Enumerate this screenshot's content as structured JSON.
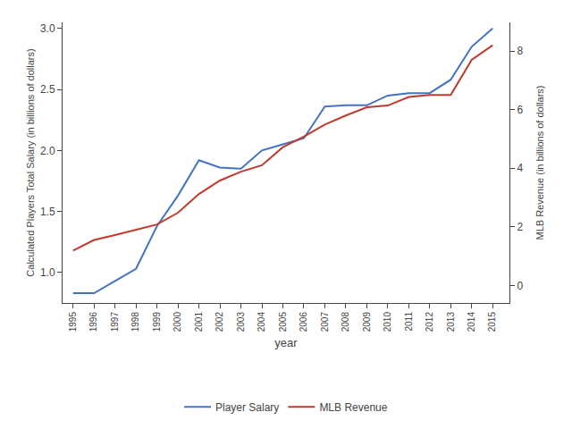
{
  "chart_data": {
    "type": "line",
    "x": [
      1995,
      1996,
      1997,
      1998,
      1999,
      2000,
      2001,
      2002,
      2003,
      2004,
      2005,
      2006,
      2007,
      2008,
      2009,
      2010,
      2011,
      2012,
      2013,
      2014,
      2015
    ],
    "xlabel": "year",
    "ylabel": "Calculated Players Total Salary (in billions of dollars)",
    "y2label": "MLB Revenue (in billions of dollars)",
    "series": [
      {
        "name": "Player Salary",
        "color": "#4472C4",
        "values": [
          0.83,
          0.83,
          0.93,
          1.03,
          1.38,
          1.63,
          1.92,
          1.86,
          1.85,
          2.0,
          2.05,
          2.1,
          2.36,
          2.37,
          2.37,
          2.45,
          2.47,
          2.47,
          2.58,
          2.85,
          3.0
        ]
      },
      {
        "name": "MLB Revenue",
        "color": "#C0392B",
        "axis": "y2",
        "values": [
          1.19,
          1.55,
          1.72,
          1.91,
          2.08,
          2.48,
          3.12,
          3.58,
          3.88,
          4.1,
          4.72,
          5.08,
          5.49,
          5.8,
          6.08,
          6.14,
          6.43,
          6.5,
          6.5,
          7.7,
          8.2
        ]
      }
    ],
    "xlim": [
      1994.5,
      2015.8
    ],
    "xticks": [
      1995,
      1996,
      1997,
      1998,
      1999,
      2000,
      2001,
      2002,
      2003,
      2004,
      2005,
      2006,
      2007,
      2008,
      2009,
      2010,
      2011,
      2012,
      2013,
      2014,
      2015
    ],
    "ylim": [
      0.75,
      3.05
    ],
    "yticks": [
      {
        "value": 1.0,
        "label": "1.0"
      },
      1.5,
      {
        "value": 2.0,
        "label": "2.0"
      },
      2.5,
      {
        "value": 3.0,
        "label": "3.0"
      }
    ],
    "y2lim": [
      -0.6,
      8.98
    ],
    "y2ticks": [
      0,
      2,
      4,
      6,
      8
    ],
    "grid": false,
    "legend": "bottom"
  }
}
